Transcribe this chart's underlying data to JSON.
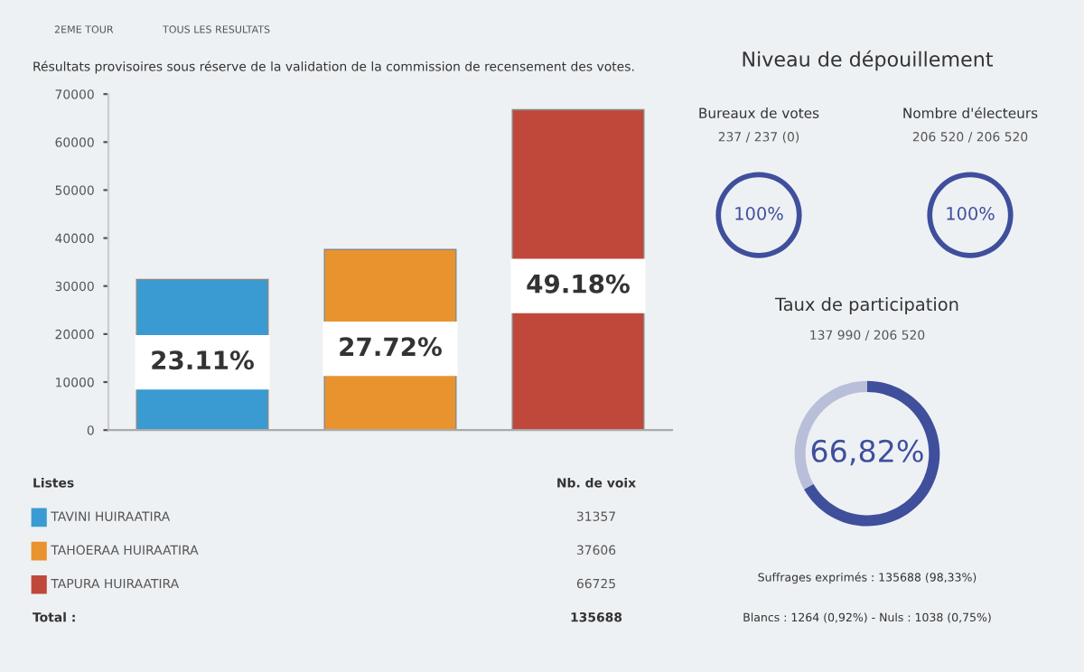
{
  "chart_data": [
    {
      "type": "other",
      "annotations": [
        "2EME TOUR",
        "TOUS LES RESULTATS"
      ]
    },
    {
      "type": "bar",
      "subtitle": "Résultats provisoires sous réserve de la validation de la commission de recensement des votes.",
      "categories": [
        null,
        null,
        null
      ],
      "values": [
        31357,
        37606,
        66725
      ],
      "colors": [
        "#3a9bd2",
        "#e9932f",
        "#c0483b"
      ],
      "annotations": [
        "23.11%",
        "27.72%",
        "49.18%"
      ],
      "ylim": [
        0,
        70000
      ],
      "yticks": [
        0,
        10000,
        20000,
        30000,
        40000,
        50000,
        60000,
        70000
      ]
    },
    {
      "type": "other",
      "annotations": [
        "Listes",
        "Nb. de voix",
        "Total :",
        "135688"
      ],
      "categories": [
        "TAVINI HUIRAATIRA",
        "TAHOERAA HUIRAATIRA",
        "TAPURA HUIRAATIRA"
      ],
      "values": [
        31357,
        37606,
        66725
      ],
      "colors": [
        "#3a9bd2",
        "#e9932f",
        "#c0483b"
      ],
      "data_labels": true
    },
    {
      "type": "other",
      "title": "Niveau de dépouillement"
    },
    {
      "type": "pie",
      "title": "Bureaux de votes",
      "subtitle": "237 / 237 (0)",
      "categories": [
        null
      ],
      "values": [
        100
      ],
      "colors": [
        "#3f4f9c"
      ],
      "value_labels": [
        "100%"
      ]
    },
    {
      "type": "pie",
      "title": "Nombre d'électeurs",
      "subtitle": "206 520 / 206 520",
      "categories": [
        null
      ],
      "values": [
        100
      ],
      "colors": [
        "#3f4f9c"
      ],
      "value_labels": [
        "100%"
      ]
    },
    {
      "type": "donut",
      "title": "Taux de participation",
      "subtitle": "137 990 / 206 520",
      "categories": [
        null,
        null
      ],
      "values": [
        66.82,
        33.18
      ],
      "colors": [
        "#3f4f9c",
        "#b9bfd9"
      ],
      "value_labels": [
        "66,82%",
        null
      ],
      "annotations": [
        "Suffrages exprimés : 135688 (98,33%)",
        "Blancs : 1264 (0,92%) - Nuls : 1038 (0,75%)"
      ]
    }
  ]
}
